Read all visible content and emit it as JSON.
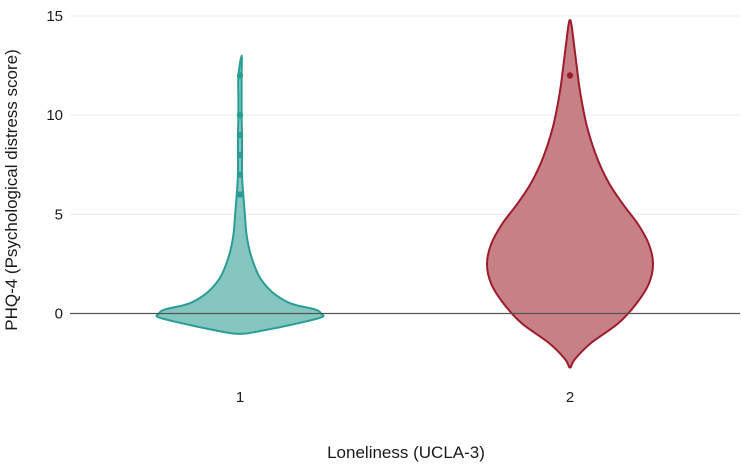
{
  "chart_data": {
    "type": "violin",
    "title": "",
    "xlabel": "Loneliness (UCLA-3)",
    "ylabel": "PHQ-4 (Psychological distress score)",
    "ylim": [
      -3,
      15
    ],
    "yticks": [
      0,
      5,
      10,
      15
    ],
    "grid": true,
    "legend": "none",
    "categories": [
      "1",
      "2"
    ],
    "series": [
      {
        "name": "1",
        "color": "#2a9d94",
        "fill": "#7fc3bd",
        "density_y": [
          -1,
          -0.6,
          -0.2,
          0,
          0.2,
          0.5,
          1,
          1.5,
          2,
          3,
          4,
          5,
          6,
          7,
          8,
          9,
          10,
          11,
          12,
          13
        ],
        "density_halfwidth_scale": [
          0.1,
          0.6,
          1.0,
          1.0,
          0.93,
          0.63,
          0.42,
          0.3,
          0.22,
          0.13,
          0.08,
          0.06,
          0.04,
          0.025,
          0.025,
          0.025,
          0.02,
          0.02,
          0.02,
          0.02
        ],
        "outliers": [
          6,
          7,
          8,
          9,
          10,
          12
        ]
      },
      {
        "name": "2",
        "color": "#9e1b2c",
        "fill": "#c47a80",
        "density_y": [
          -2.7,
          -2.3,
          -1.5,
          -0.5,
          0.5,
          1.5,
          2.5,
          3.5,
          4.5,
          5.5,
          6.5,
          7.5,
          8.5,
          9.5,
          10.5,
          11.5,
          12.5,
          13.5,
          14.5,
          14.8
        ],
        "density_halfwidth_scale": [
          0.01,
          0.06,
          0.25,
          0.58,
          0.8,
          0.95,
          1.0,
          0.95,
          0.82,
          0.64,
          0.48,
          0.36,
          0.27,
          0.2,
          0.15,
          0.11,
          0.08,
          0.05,
          0.02,
          0.0
        ],
        "outliers": [
          12
        ]
      }
    ]
  }
}
